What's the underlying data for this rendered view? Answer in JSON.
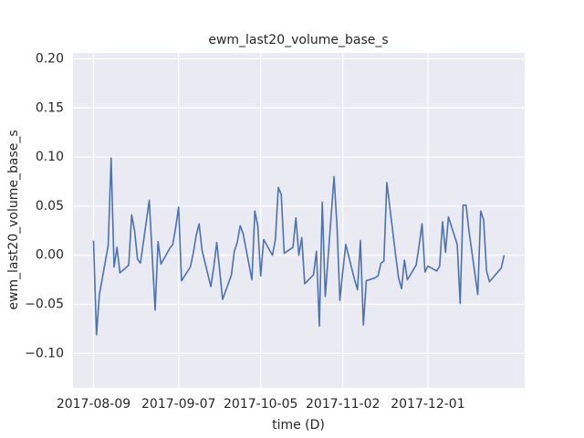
{
  "chart_data": {
    "type": "line",
    "title": "ewm_last20_volume_base_s",
    "x_label": "time (D)",
    "y_label": "ewm_last20_volume_base_s",
    "x": [
      "2017-08-09",
      "2017-08-10",
      "2017-08-11",
      "2017-08-14",
      "2017-08-15",
      "2017-08-16",
      "2017-08-17",
      "2017-08-18",
      "2017-08-21",
      "2017-08-22",
      "2017-08-23",
      "2017-08-24",
      "2017-08-25",
      "2017-08-28",
      "2017-08-29",
      "2017-08-30",
      "2017-08-31",
      "2017-09-01",
      "2017-09-04",
      "2017-09-05",
      "2017-09-06",
      "2017-09-07",
      "2017-09-08",
      "2017-09-11",
      "2017-09-12",
      "2017-09-13",
      "2017-09-14",
      "2017-09-15",
      "2017-09-18",
      "2017-09-19",
      "2017-09-20",
      "2017-09-21",
      "2017-09-22",
      "2017-09-25",
      "2017-09-26",
      "2017-09-27",
      "2017-09-28",
      "2017-09-29",
      "2017-10-02",
      "2017-10-03",
      "2017-10-04",
      "2017-10-05",
      "2017-10-06",
      "2017-10-09",
      "2017-10-10",
      "2017-10-11",
      "2017-10-12",
      "2017-10-13",
      "2017-10-16",
      "2017-10-17",
      "2017-10-18",
      "2017-10-19",
      "2017-10-20",
      "2017-10-23",
      "2017-10-24",
      "2017-10-25",
      "2017-10-26",
      "2017-10-27",
      "2017-10-30",
      "2017-10-31",
      "2017-11-01",
      "2017-11-02",
      "2017-11-03",
      "2017-11-06",
      "2017-11-07",
      "2017-11-08",
      "2017-11-09",
      "2017-11-10",
      "2017-11-13",
      "2017-11-14",
      "2017-11-15",
      "2017-11-16",
      "2017-11-17",
      "2017-11-20",
      "2017-11-21",
      "2017-11-22",
      "2017-11-23",
      "2017-11-24",
      "2017-11-27",
      "2017-11-28",
      "2017-11-29",
      "2017-11-30",
      "2017-12-01",
      "2017-12-04",
      "2017-12-05",
      "2017-12-06",
      "2017-12-07",
      "2017-12-08",
      "2017-12-11",
      "2017-12-12",
      "2017-12-13",
      "2017-12-14",
      "2017-12-15",
      "2017-12-18",
      "2017-12-19",
      "2017-12-20",
      "2017-12-21",
      "2017-12-22",
      "2017-12-26",
      "2017-12-27"
    ],
    "series": [
      {
        "name": "ewm_last20_volume_base_s",
        "color": "#4c72b0",
        "values": [
          0.015,
          -0.081,
          -0.04,
          0.01,
          0.099,
          -0.012,
          0.008,
          -0.018,
          -0.01,
          0.041,
          0.025,
          -0.004,
          -0.008,
          0.056,
          0.0,
          -0.056,
          0.014,
          -0.009,
          0.007,
          0.011,
          0.028,
          0.049,
          -0.026,
          -0.012,
          0.002,
          0.02,
          0.032,
          0.005,
          -0.032,
          -0.012,
          0.013,
          -0.015,
          -0.045,
          -0.02,
          0.004,
          0.013,
          0.03,
          0.022,
          -0.025,
          0.045,
          0.03,
          -0.021,
          0.016,
          0.0,
          0.016,
          0.069,
          0.062,
          0.002,
          0.008,
          0.038,
          0.0,
          0.018,
          -0.029,
          -0.02,
          0.004,
          -0.072,
          0.054,
          -0.042,
          0.08,
          0.03,
          -0.046,
          -0.016,
          0.011,
          -0.025,
          -0.035,
          0.015,
          -0.071,
          -0.026,
          -0.023,
          -0.021,
          -0.008,
          -0.006,
          0.074,
          0.0,
          -0.023,
          -0.034,
          -0.005,
          -0.025,
          -0.01,
          0.01,
          0.032,
          -0.017,
          -0.011,
          -0.016,
          -0.011,
          0.034,
          0.003,
          0.039,
          0.011,
          -0.049,
          0.051,
          0.051,
          0.025,
          -0.04,
          0.045,
          0.036,
          -0.016,
          -0.027,
          -0.013,
          0.0
        ]
      }
    ],
    "xlim": [
      "2017-08-02",
      "2018-01-03"
    ],
    "xticks": [
      "2017-08-09",
      "2017-09-07",
      "2017-10-05",
      "2017-11-02",
      "2017-12-01"
    ],
    "ylim": [
      -0.135,
      0.206
    ],
    "yticks": [
      {
        "value": -0.1,
        "label": "−0.10"
      },
      {
        "value": -0.05,
        "label": "−0.05"
      },
      {
        "value": 0,
        "label": "0.00"
      },
      {
        "value": 0.05,
        "label": "0.05"
      },
      {
        "value": 0.1,
        "label": "0.10"
      },
      {
        "value": 0.15,
        "label": "0.15"
      },
      {
        "value": 0.2,
        "label": "0.20"
      }
    ],
    "grid": true
  }
}
